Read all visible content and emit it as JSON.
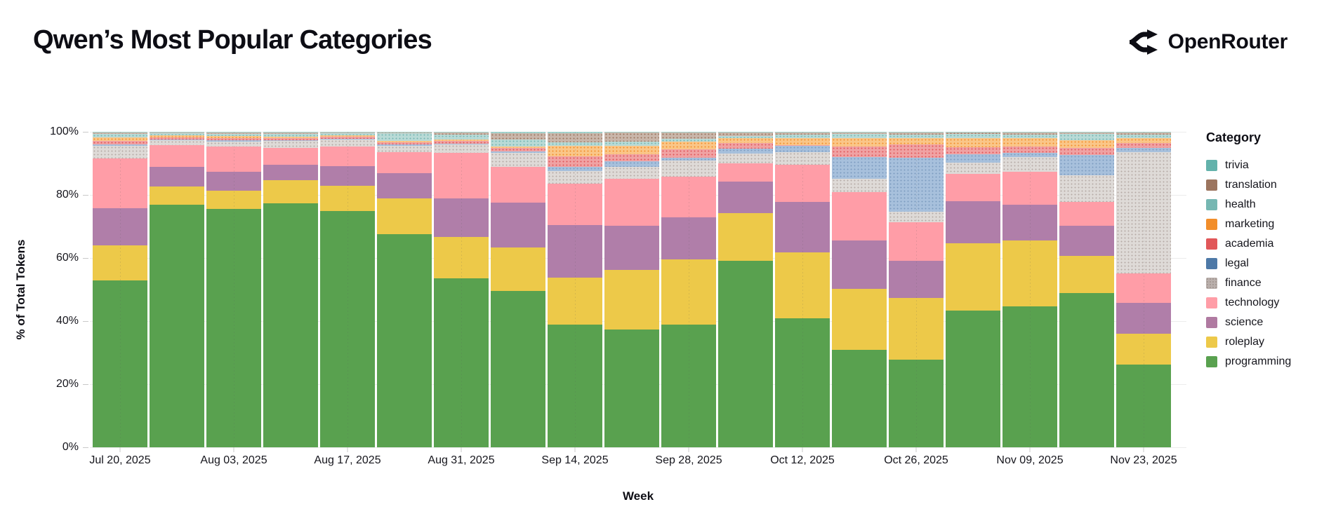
{
  "header": {
    "title": "Qwen’s Most Popular Categories",
    "brand": "OpenRouter"
  },
  "chart_data": {
    "type": "bar",
    "variant": "stacked-100-percent",
    "title": "Qwen’s Most Popular Categories",
    "xlabel": "Week",
    "ylabel": "% of Total Tokens",
    "ylim": [
      0,
      100
    ],
    "grid": true,
    "legend_position": "right",
    "legend_title": "Category",
    "ytick_labels": [
      "0%",
      "20%",
      "40%",
      "60%",
      "80%",
      "100%"
    ],
    "xtick_labels": [
      "Jul 20, 2025",
      "Aug 03, 2025",
      "Aug 17, 2025",
      "Aug 31, 2025",
      "Sep 14, 2025",
      "Sep 28, 2025",
      "Oct 12, 2025",
      "Oct 26, 2025",
      "Nov 09, 2025",
      "Nov 23, 2025"
    ],
    "categories": [
      "Jul 20, 2025",
      "Jul 27, 2025",
      "Aug 03, 2025",
      "Aug 10, 2025",
      "Aug 17, 2025",
      "Aug 24, 2025",
      "Aug 31, 2025",
      "Sep 07, 2025",
      "Sep 14, 2025",
      "Sep 21, 2025",
      "Sep 28, 2025",
      "Oct 05, 2025",
      "Oct 12, 2025",
      "Oct 19, 2025",
      "Oct 26, 2025",
      "Nov 02, 2025",
      "Nov 09, 2025",
      "Nov 16, 2025",
      "Nov 23, 2025"
    ],
    "series": [
      {
        "name": "programming",
        "color": "#59a14f",
        "fill": "#59a14f",
        "pattern": false,
        "values": [
          52.9,
          77.0,
          75.6,
          77.3,
          74.8,
          67.5,
          53.6,
          49.6,
          39.0,
          37.3,
          38.8,
          59.2,
          41.0,
          31.0,
          27.7,
          43.3,
          44.7,
          48.8,
          26.2
        ]
      },
      {
        "name": "roleplay",
        "color": "#edc949",
        "fill": "#edc949",
        "pattern": false,
        "values": [
          11.1,
          5.6,
          5.7,
          7.4,
          8.0,
          11.3,
          13.0,
          13.7,
          14.8,
          18.9,
          20.8,
          15.1,
          20.8,
          19.3,
          19.6,
          21.4,
          20.9,
          11.9,
          9.7
        ]
      },
      {
        "name": "science",
        "color": "#b07aa1",
        "fill": "#b07ea9",
        "pattern": false,
        "values": [
          11.8,
          6.3,
          6.0,
          4.8,
          6.3,
          8.2,
          12.4,
          14.2,
          16.7,
          14.1,
          13.3,
          10.0,
          15.9,
          15.3,
          11.9,
          13.4,
          11.4,
          9.6,
          9.9
        ]
      },
      {
        "name": "technology",
        "color": "#ff9da7",
        "fill": "#ff9da7",
        "pattern": false,
        "values": [
          15.8,
          6.9,
          8.0,
          5.3,
          6.2,
          6.6,
          14.3,
          11.3,
          13.0,
          14.8,
          12.9,
          5.8,
          11.9,
          15.4,
          12.2,
          8.5,
          10.3,
          7.4,
          9.3
        ]
      },
      {
        "name": "finance",
        "color": "#bab0ac",
        "fill": "#dedad7",
        "dot": "#b5aba6",
        "pattern": true,
        "values": [
          4.0,
          1.5,
          1.7,
          2.3,
          2.2,
          1.9,
          2.6,
          4.5,
          4.0,
          3.7,
          5.0,
          3.0,
          4.0,
          4.1,
          3.3,
          3.7,
          4.7,
          8.5,
          38.5
        ]
      },
      {
        "name": "legal",
        "color": "#4e79a7",
        "fill": "#a7c0dc",
        "dot": "#7d9cc0",
        "pattern": true,
        "values": [
          0.5,
          0.3,
          0.3,
          0.3,
          0.3,
          0.4,
          0.4,
          0.5,
          1.5,
          1.9,
          1.0,
          1.5,
          1.9,
          7.0,
          17.1,
          2.6,
          1.3,
          6.4,
          1.3
        ]
      },
      {
        "name": "academia",
        "color": "#e15759",
        "fill": "#f0a2a3",
        "dot": "#e15759",
        "pattern": true,
        "values": [
          1.1,
          0.7,
          0.8,
          0.7,
          0.6,
          0.8,
          0.9,
          1.2,
          3.3,
          2.2,
          2.6,
          1.8,
          0.3,
          3.3,
          4.1,
          2.2,
          2.0,
          2.2,
          1.6
        ]
      },
      {
        "name": "marketing",
        "color": "#f28e2b",
        "fill": "#fac688",
        "dot": "#f28e2b",
        "pattern": true,
        "values": [
          1.1,
          0.5,
          0.5,
          0.4,
          0.4,
          0.4,
          0.3,
          0.3,
          3.2,
          2.6,
          2.6,
          1.5,
          2.3,
          2.7,
          2.2,
          3.0,
          2.7,
          2.6,
          1.4
        ]
      },
      {
        "name": "health",
        "color": "#76b7b2",
        "fill": "#b8dad6",
        "dot": "#76b7b2",
        "pattern": true,
        "values": [
          1.0,
          0.7,
          0.8,
          0.9,
          0.7,
          2.5,
          1.7,
          2.2,
          1.1,
          1.5,
          0.7,
          0.8,
          1.1,
          1.2,
          1.0,
          1.3,
          1.2,
          1.9,
          1.2
        ]
      },
      {
        "name": "translation",
        "color": "#9c755f",
        "fill": "#c9b6aa",
        "dot": "#9c755f",
        "pattern": true,
        "values": [
          0.4,
          0.3,
          0.4,
          0.4,
          0.3,
          0.3,
          0.6,
          2.1,
          3.0,
          2.8,
          2.1,
          1.1,
          0.6,
          0.5,
          0.6,
          0.5,
          0.6,
          0.5,
          0.6
        ]
      },
      {
        "name": "trivia",
        "color": "#63b2ab",
        "fill": "#a3d2cc",
        "dot": "#63b2ab",
        "pattern": true,
        "values": [
          0.3,
          0.2,
          0.2,
          0.2,
          0.2,
          0.1,
          0.2,
          0.4,
          0.4,
          0.2,
          0.2,
          0.2,
          0.2,
          0.2,
          0.3,
          0.1,
          0.2,
          0.2,
          0.3
        ]
      }
    ]
  }
}
